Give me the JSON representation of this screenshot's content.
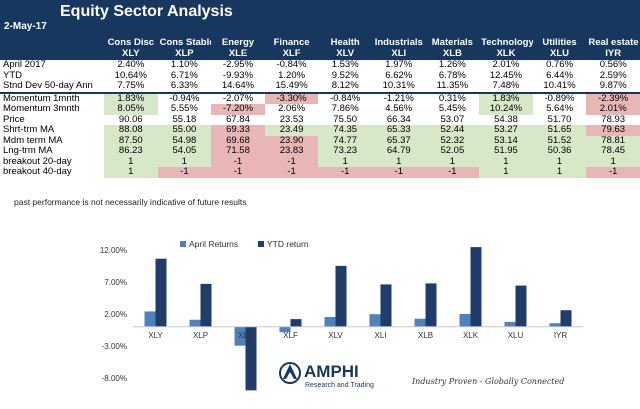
{
  "header": {
    "title": "Equity Sector  Analysis",
    "date": "2-May-17"
  },
  "columns": [
    {
      "name": "Cons Disc",
      "ticker": "XLY"
    },
    {
      "name": "Cons Stable",
      "ticker": "XLP"
    },
    {
      "name": "Energy",
      "ticker": "XLE"
    },
    {
      "name": "Finance",
      "ticker": "XLF"
    },
    {
      "name": "Health",
      "ticker": "XLV"
    },
    {
      "name": "Industrials",
      "ticker": "XLI"
    },
    {
      "name": "Materials",
      "ticker": "XLB"
    },
    {
      "name": "Technology",
      "ticker": "XLK"
    },
    {
      "name": "Utilities",
      "ticker": "XLU"
    },
    {
      "name": "Real estate",
      "ticker": "IYR"
    }
  ],
  "rows": [
    {
      "label": "April 2017",
      "values": [
        "2.40%",
        "1.10%",
        "-2.95%",
        "-0.84%",
        "1.53%",
        "1.97%",
        "1.26%",
        "2.01%",
        "0.76%",
        "0.56%"
      ],
      "colors": [
        "",
        "",
        "",
        "",
        "",
        "",
        "",
        "",
        "",
        ""
      ]
    },
    {
      "label": "YTD",
      "values": [
        "10.64%",
        "6.71%",
        "-9.93%",
        "1.20%",
        "9.52%",
        "6.62%",
        "6.78%",
        "12.45%",
        "6.44%",
        "2.59%"
      ],
      "colors": [
        "",
        "",
        "",
        "",
        "",
        "",
        "",
        "",
        "",
        ""
      ]
    },
    {
      "label": "Stnd Dev 50-day Ann",
      "values": [
        "7.75%",
        "6.33%",
        "14.64%",
        "15.49%",
        "8.12%",
        "10.31%",
        "11.35%",
        "7.48%",
        "10.41%",
        "9.87%"
      ],
      "colors": [
        "",
        "",
        "",
        "",
        "",
        "",
        "",
        "",
        "",
        ""
      ]
    },
    {
      "label": "Momentum 1mnth",
      "values": [
        "1.83%",
        "-0.94%",
        "-2.07%",
        "-3.30%",
        "-0.84%",
        "-1.21%",
        "0.31%",
        "1.83%",
        "-0.89%",
        "-2.39%"
      ],
      "colors": [
        "g",
        "",
        "",
        "r",
        "",
        "",
        "",
        "g",
        "",
        "r"
      ]
    },
    {
      "label": "Momentum 3mnth",
      "values": [
        "8.05%",
        "5.55%",
        "-7.20%",
        "2.06%",
        "7.86%",
        "4.56%",
        "5.45%",
        "10.24%",
        "5.64%",
        "2.01%"
      ],
      "colors": [
        "g",
        "",
        "r",
        "",
        "",
        "",
        "",
        "g",
        "",
        "r"
      ]
    },
    {
      "label": "Price",
      "values": [
        "90.06",
        "55.18",
        "67.84",
        "23.53",
        "75.50",
        "66.34",
        "53.07",
        "54.38",
        "51.70",
        "78.93"
      ],
      "colors": [
        "",
        "",
        "",
        "",
        "",
        "",
        "",
        "",
        "",
        ""
      ]
    },
    {
      "label": "Shrt-trm MA",
      "values": [
        "88.08",
        "55.00",
        "69.33",
        "23.49",
        "74.35",
        "65.33",
        "52.44",
        "53.27",
        "51.65",
        "79.63"
      ],
      "colors": [
        "g",
        "g",
        "r",
        "g",
        "g",
        "g",
        "g",
        "g",
        "g",
        "r"
      ]
    },
    {
      "label": "Mdm term MA",
      "values": [
        "87.50",
        "54.98",
        "69.68",
        "23.90",
        "74.77",
        "65.37",
        "52.32",
        "53.14",
        "51.52",
        "78.81"
      ],
      "colors": [
        "g",
        "g",
        "r",
        "r",
        "g",
        "g",
        "g",
        "g",
        "g",
        "g"
      ]
    },
    {
      "label": "Lng-trm MA",
      "values": [
        "86.23",
        "54.05",
        "71.58",
        "23.83",
        "73.23",
        "64.79",
        "52.05",
        "51.95",
        "50.36",
        "78.45"
      ],
      "colors": [
        "g",
        "g",
        "r",
        "r",
        "g",
        "g",
        "g",
        "g",
        "g",
        "g"
      ]
    },
    {
      "label": "breakout 20-day",
      "values": [
        "1",
        "1",
        "-1",
        "-1",
        "1",
        "1",
        "1",
        "1",
        "1",
        "1"
      ],
      "colors": [
        "g",
        "g",
        "r",
        "r",
        "g",
        "g",
        "g",
        "g",
        "g",
        "g"
      ]
    },
    {
      "label": "breakout 40-day",
      "values": [
        "1",
        "-1",
        "-1",
        "-1",
        "-1",
        "-1",
        "-1",
        "1",
        "1",
        "-1"
      ],
      "colors": [
        "g",
        "r",
        "r",
        "r",
        "r",
        "r",
        "r",
        "g",
        "g",
        "r"
      ]
    }
  ],
  "note": "past performance is not necessarily indicative of future results",
  "colors": {
    "navy": "#17375e",
    "april_bar": "#4f81bd",
    "ytd_bar": "#1f3d6b",
    "green_cell": "#d6e8c8",
    "red_cell": "#e9b6b6"
  },
  "chart_data": {
    "type": "bar",
    "categories": [
      "XLY",
      "XLP",
      "XLE",
      "XLF",
      "XLV",
      "XLI",
      "XLB",
      "XLK",
      "XLU",
      "IYR"
    ],
    "series": [
      {
        "name": "April Returns",
        "values": [
          2.4,
          1.1,
          -2.95,
          -0.84,
          1.53,
          1.97,
          1.26,
          2.01,
          0.76,
          0.56
        ]
      },
      {
        "name": "YTD return",
        "values": [
          10.64,
          6.71,
          -9.93,
          1.2,
          9.52,
          6.62,
          6.78,
          12.45,
          6.44,
          2.59
        ]
      }
    ],
    "yticks": [
      "12.00%",
      "7.00%",
      "2.00%",
      "-3.00%",
      "-8.00%"
    ],
    "ytick_values": [
      12,
      7,
      2,
      -3,
      -8
    ],
    "ylim": [
      -8,
      12
    ],
    "legend": "top",
    "grid": false
  },
  "logo": {
    "name": "AMPHI",
    "sub": "Research and Trading"
  },
  "tagline": "Industry Proven - Globally Connected"
}
